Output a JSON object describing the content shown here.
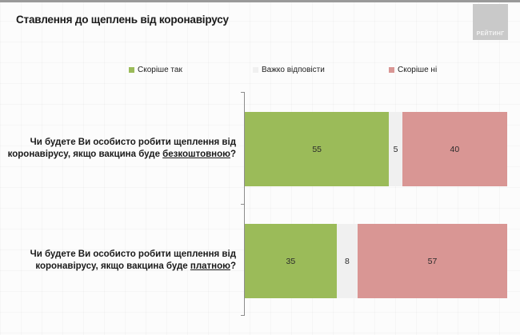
{
  "header": {
    "title": "Ставлення до щеплень від коронавірусу",
    "logo_text": "РЕЙТИНГ"
  },
  "colors": {
    "yes": "#9bbb59",
    "hard_to_say": "#f0f0f0",
    "no": "#d99694",
    "logo_bg": "#c9c9c9",
    "axis": "#8c8c8c"
  },
  "legend": [
    {
      "label": "Скоріше так",
      "color": "#9bbb59"
    },
    {
      "label": "Важко відповісти",
      "color": "#f0f0f0"
    },
    {
      "label": "Скоріше ні",
      "color": "#d99694"
    }
  ],
  "questions": [
    {
      "line1": "Чи будете Ви особисто робити щеплення від",
      "line2_prefix": "коронавірусу, якщо вакцина буде ",
      "line2_emph": "безкоштовною",
      "line2_suffix": "?"
    },
    {
      "line1": "Чи будете Ви особисто робити щеплення від",
      "line2_prefix": "коронавірусу, якщо вакцина буде ",
      "line2_emph": "платною",
      "line2_suffix": "?"
    }
  ],
  "chart_data": {
    "type": "bar",
    "orientation": "horizontal",
    "stacked": true,
    "title": "Ставлення до щеплень від коронавірусу",
    "xlabel": "",
    "ylabel": "",
    "xlim": [
      0,
      100
    ],
    "grid": false,
    "legend_position": "top",
    "categories": [
      "Чи будете Ви особисто робити щеплення від коронавірусу, якщо вакцина буде безкоштовною?",
      "Чи будете Ви особисто робити щеплення від коронавірусу, якщо вакцина буде платною?"
    ],
    "series": [
      {
        "name": "Скоріше так",
        "color": "#9bbb59",
        "values": [
          55,
          35
        ]
      },
      {
        "name": "Важко відповісти",
        "color": "#f0f0f0",
        "values": [
          5,
          8
        ]
      },
      {
        "name": "Скоріше ні",
        "color": "#d99694",
        "values": [
          40,
          57
        ]
      }
    ],
    "data_labels": true
  }
}
